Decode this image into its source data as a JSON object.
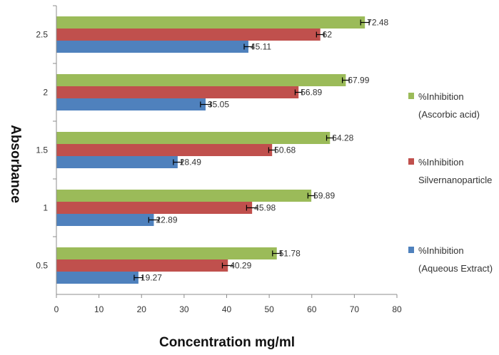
{
  "chart_data": {
    "type": "bar",
    "orientation": "horizontal",
    "categories": [
      "0.5",
      "1",
      "1.5",
      "2",
      "2.5"
    ],
    "series": [
      {
        "name": "%Inhibition (Aqueous Extract)",
        "legend_lines": [
          "%Inhibition",
          "(Aqueous Extract)"
        ],
        "color": "#4F81BD",
        "values": [
          19.27,
          22.89,
          28.49,
          35.05,
          45.11
        ],
        "labels": [
          "19.27",
          "22.89",
          "28.49",
          "35.05",
          "45.11"
        ],
        "errors": [
          1.0,
          1.2,
          1.0,
          1.2,
          1.0
        ]
      },
      {
        "name": "%Inhibition Silvernanoparticle",
        "legend_lines": [
          "%Inhibition",
          "Silvernanoparticle"
        ],
        "color": "#C0504D",
        "values": [
          40.29,
          45.98,
          50.68,
          56.89,
          62
        ],
        "labels": [
          "40.29",
          "45.98",
          "50.68",
          "56.89",
          "62"
        ],
        "errors": [
          1.3,
          1.3,
          0.8,
          0.8,
          0.9
        ]
      },
      {
        "name": "%Inhibition (Ascorbic acid)",
        "legend_lines": [
          "%Inhibition",
          "(Ascorbic acid)"
        ],
        "color": "#9BBB59",
        "values": [
          51.78,
          59.89,
          64.28,
          67.99,
          72.48
        ],
        "labels": [
          "51.78",
          "59.89",
          "64.28",
          "67.99",
          "72.48"
        ],
        "errors": [
          1.0,
          0.8,
          0.8,
          0.8,
          1.0
        ]
      }
    ],
    "xlabel": "Concentration mg/ml",
    "ylabel": "Absorbance",
    "xlim": [
      0,
      80
    ],
    "xticks": [
      0,
      10,
      20,
      30,
      40,
      50,
      60,
      70,
      80
    ],
    "grid": false,
    "legend_position": "right"
  }
}
